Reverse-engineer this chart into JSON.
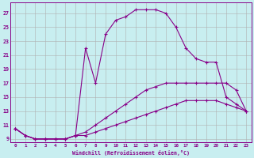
{
  "xlabel": "Windchill (Refroidissement éolien,°C)",
  "background_color": "#c8eef0",
  "grid_color": "#b0b0b0",
  "line_color": "#880088",
  "xlim": [
    -0.5,
    23.5
  ],
  "ylim": [
    8.5,
    28.5
  ],
  "xticks": [
    0,
    1,
    2,
    3,
    4,
    5,
    6,
    7,
    8,
    9,
    10,
    11,
    12,
    13,
    14,
    15,
    16,
    17,
    18,
    19,
    20,
    21,
    22,
    23
  ],
  "yticks": [
    9,
    11,
    13,
    15,
    17,
    19,
    21,
    23,
    25,
    27
  ],
  "curve1_x": [
    0,
    1,
    2,
    3,
    4,
    5,
    6,
    7,
    8,
    9,
    10,
    11,
    12,
    13,
    14,
    15,
    16,
    17,
    18,
    19,
    20,
    21,
    22,
    23
  ],
  "curve1_y": [
    10.5,
    9.5,
    9,
    9,
    9,
    9,
    9.5,
    22,
    17,
    24,
    26,
    26.5,
    27.5,
    27.5,
    27.5,
    27,
    25,
    22,
    20.5,
    20,
    20,
    15,
    14,
    13
  ],
  "curve2_x": [
    0,
    1,
    2,
    3,
    4,
    5,
    6,
    7,
    8,
    9,
    10,
    11,
    12,
    13,
    14,
    15,
    16,
    17,
    18,
    19,
    20,
    21,
    22,
    23
  ],
  "curve2_y": [
    10.5,
    9.5,
    9,
    9,
    9,
    9,
    9.5,
    10,
    11,
    12,
    13,
    14,
    15,
    16,
    16.5,
    17,
    17,
    17,
    17,
    17,
    17,
    17,
    16,
    13
  ],
  "curve3_x": [
    0,
    1,
    2,
    3,
    4,
    5,
    6,
    7,
    8,
    9,
    10,
    11,
    12,
    13,
    14,
    15,
    16,
    17,
    18,
    19,
    20,
    21,
    22,
    23
  ],
  "curve3_y": [
    10.5,
    9.5,
    9,
    9,
    9,
    9,
    9.5,
    9.5,
    10,
    10.5,
    11,
    11.5,
    12,
    12.5,
    13,
    13.5,
    14,
    14.5,
    14.5,
    14.5,
    14.5,
    14,
    13.5,
    13
  ]
}
